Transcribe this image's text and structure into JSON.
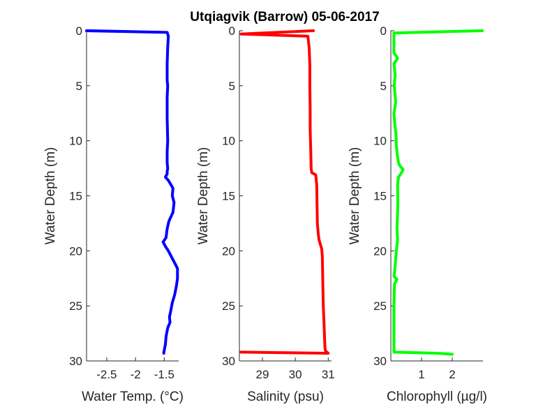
{
  "title": "Utqiagvik (Barrow)  05-06-2017",
  "chart_data": [
    {
      "type": "line",
      "xlabel": "Water Temp. (°C)",
      "ylabel": "Water Depth (m)",
      "xlim": [
        -2.85,
        -1.25
      ],
      "ylim": [
        0,
        30
      ],
      "y_reversed": true,
      "xticks": [
        -2.5,
        -2,
        -1.5
      ],
      "xtick_labels": [
        "-2.5",
        "-2",
        "-1.5"
      ],
      "yticks": [
        0,
        5,
        10,
        15,
        20,
        25,
        30
      ],
      "ytick_labels": [
        "0",
        "5",
        "10",
        "15",
        "20",
        "25",
        "30"
      ],
      "grid": false,
      "series": [
        {
          "color": "#0000ff",
          "x": [
            -2.85,
            -1.45,
            -1.43,
            -1.44,
            -1.45,
            -1.45,
            -1.44,
            -1.45,
            -1.45,
            -1.44,
            -1.45,
            -1.45,
            -1.44,
            -1.45,
            -1.45,
            -1.48,
            -1.43,
            -1.35,
            -1.36,
            -1.33,
            -1.35,
            -1.42,
            -1.45,
            -1.47,
            -1.52,
            -1.48,
            -1.43,
            -1.35,
            -1.3,
            -1.27,
            -1.27,
            -1.29,
            -1.32,
            -1.36,
            -1.39,
            -1.41,
            -1.4,
            -1.44,
            -1.47,
            -1.48,
            -1.5,
            -1.51
          ],
          "y": [
            0.0,
            0.15,
            0.5,
            1.5,
            3.0,
            4.5,
            5.0,
            6.0,
            8.0,
            10.0,
            11.0,
            12.0,
            12.5,
            12.8,
            13.0,
            13.3,
            13.6,
            14.3,
            15.0,
            15.6,
            16.5,
            17.3,
            18.0,
            18.8,
            19.2,
            19.6,
            20.0,
            20.8,
            21.3,
            21.6,
            22.5,
            23.2,
            24.0,
            24.7,
            25.5,
            26.0,
            26.5,
            27.0,
            27.8,
            28.5,
            29.0,
            29.3
          ]
        }
      ]
    },
    {
      "type": "line",
      "xlabel": "Salinity (psu)",
      "ylabel": "Water Depth (m)",
      "xlim": [
        28.3,
        31.1
      ],
      "ylim": [
        0,
        30
      ],
      "y_reversed": true,
      "xticks": [
        29,
        30,
        31
      ],
      "xtick_labels": [
        "29",
        "30",
        "31"
      ],
      "yticks": [
        0,
        5,
        10,
        15,
        20,
        25,
        30
      ],
      "ytick_labels": [
        "0",
        "5",
        "10",
        "15",
        "20",
        "25",
        "30"
      ],
      "grid": false,
      "series": [
        {
          "color": "#ff0000",
          "x": [
            30.55,
            28.35,
            30.38,
            30.42,
            30.44,
            30.44,
            30.45,
            30.45,
            30.47,
            30.48,
            30.5,
            30.62,
            30.65,
            30.66,
            30.67,
            30.7,
            30.72,
            30.8,
            30.82,
            30.83,
            30.84,
            30.85,
            30.87,
            30.89,
            30.9,
            30.92,
            31.0,
            28.35
          ],
          "y": [
            0.0,
            0.3,
            0.5,
            1.5,
            3.0,
            5.0,
            7.0,
            9.0,
            11.0,
            12.5,
            12.9,
            13.1,
            14.0,
            16.0,
            17.5,
            18.5,
            19.0,
            19.8,
            20.5,
            22.0,
            23.5,
            25.0,
            26.5,
            28.0,
            28.8,
            29.1,
            29.3,
            29.2
          ]
        }
      ]
    },
    {
      "type": "line",
      "xlabel": "Chlorophyll (µg/l)",
      "ylabel": "Water Depth (m)",
      "xlim": [
        0,
        3
      ],
      "ylim": [
        0,
        30
      ],
      "y_reversed": true,
      "xticks": [
        1,
        2
      ],
      "xtick_labels": [
        "1",
        "2"
      ],
      "yticks": [
        0,
        5,
        10,
        15,
        20,
        25,
        30
      ],
      "ytick_labels": [
        "0",
        "5",
        "10",
        "15",
        "20",
        "25",
        "30"
      ],
      "grid": false,
      "series": [
        {
          "color": "#00ff00",
          "x": [
            2.98,
            0.1,
            0.1,
            0.1,
            0.22,
            0.1,
            0.14,
            0.11,
            0.16,
            0.1,
            0.13,
            0.17,
            0.18,
            0.22,
            0.25,
            0.3,
            0.4,
            0.35,
            0.25,
            0.22,
            0.23,
            0.22,
            0.2,
            0.22,
            0.18,
            0.15,
            0.12,
            0.1,
            0.2,
            0.12,
            0.1,
            0.1,
            0.1,
            0.1,
            1.5,
            2.0
          ],
          "y": [
            0.0,
            0.2,
            1.0,
            2.0,
            2.5,
            3.0,
            4.0,
            5.0,
            6.5,
            7.5,
            8.5,
            9.5,
            10.5,
            11.5,
            12.0,
            12.3,
            12.6,
            12.9,
            13.3,
            14.0,
            15.5,
            16.5,
            18.0,
            19.0,
            20.0,
            21.0,
            22.0,
            22.3,
            22.6,
            23.0,
            25.0,
            27.0,
            29.0,
            29.2,
            29.3,
            29.4
          ]
        }
      ]
    }
  ]
}
